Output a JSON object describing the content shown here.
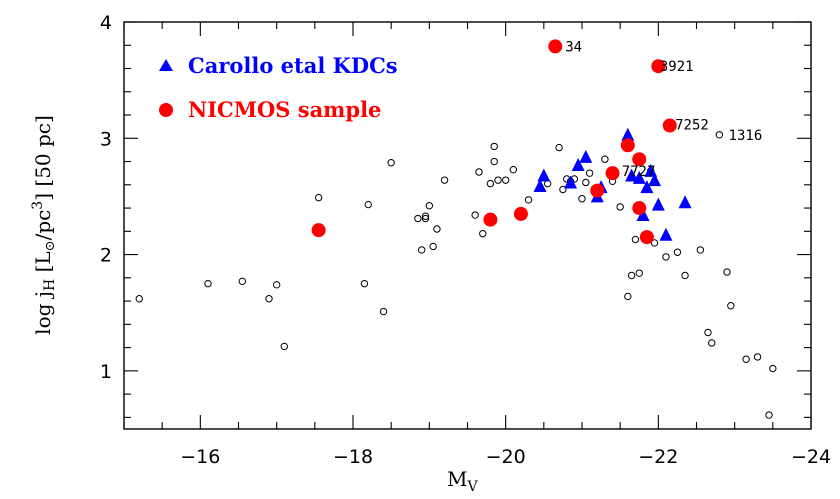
{
  "chart_data": {
    "type": "scatter",
    "xlabel_main": "M",
    "xlabel_sub": "V",
    "ylabel": "log j [L /pc ] [50 pc]",
    "ylabel_parts": {
      "pre": "log j",
      "sub_h": "H",
      "bracket_open": " [L",
      "sub_sun": "⊙",
      "mid": "/pc",
      "sup": "3",
      "post": "] [50 pc]"
    },
    "xlim": [
      -15,
      -24
    ],
    "ylim": [
      0.5,
      4
    ],
    "x_ticks": [
      -16,
      -18,
      -20,
      -22,
      -24
    ],
    "x_tick_labels": [
      "−16",
      "−18",
      "−20",
      "−22",
      "−24"
    ],
    "y_ticks": [
      1,
      2,
      3,
      4
    ],
    "y_tick_labels": [
      "1",
      "2",
      "3",
      "4"
    ],
    "grid": false,
    "legend_position": "top-left",
    "series": [
      {
        "name": "",
        "marker": "open-circle",
        "color": "#000000",
        "points": [
          [
            -15.2,
            1.62
          ],
          [
            -16.1,
            1.75
          ],
          [
            -16.55,
            1.77
          ],
          [
            -16.9,
            1.62
          ],
          [
            -17.0,
            1.74
          ],
          [
            -17.1,
            1.21
          ],
          [
            -17.55,
            2.49
          ],
          [
            -18.15,
            1.75
          ],
          [
            -18.2,
            2.43
          ],
          [
            -18.4,
            1.51
          ],
          [
            -18.5,
            2.79
          ],
          [
            -18.85,
            2.31
          ],
          [
            -18.9,
            2.04
          ],
          [
            -18.95,
            2.33
          ],
          [
            -18.95,
            2.31
          ],
          [
            -19.0,
            2.42
          ],
          [
            -19.05,
            2.07
          ],
          [
            -19.1,
            2.22
          ],
          [
            -19.2,
            2.64
          ],
          [
            -19.6,
            2.34
          ],
          [
            -19.65,
            2.71
          ],
          [
            -19.7,
            2.18
          ],
          [
            -19.8,
            2.61
          ],
          [
            -19.85,
            2.8
          ],
          [
            -19.85,
            2.93
          ],
          [
            -19.9,
            2.64
          ],
          [
            -20.0,
            2.64
          ],
          [
            -20.1,
            2.73
          ],
          [
            -20.3,
            2.47
          ],
          [
            -20.55,
            2.61
          ],
          [
            -20.7,
            2.92
          ],
          [
            -20.75,
            2.56
          ],
          [
            -20.8,
            2.65
          ],
          [
            -20.85,
            2.63
          ],
          [
            -20.9,
            2.65
          ],
          [
            -21.0,
            2.48
          ],
          [
            -21.05,
            2.62
          ],
          [
            -21.1,
            2.7
          ],
          [
            -21.2,
            2.5
          ],
          [
            -21.3,
            2.82
          ],
          [
            -21.4,
            2.63
          ],
          [
            -21.5,
            2.41
          ],
          [
            -21.6,
            1.64
          ],
          [
            -21.65,
            1.82
          ],
          [
            -21.7,
            2.13
          ],
          [
            -21.75,
            1.84
          ],
          [
            -21.9,
            2.72
          ],
          [
            -21.95,
            2.1
          ],
          [
            -22.1,
            1.98
          ],
          [
            -22.25,
            2.02
          ],
          [
            -22.35,
            1.82
          ],
          [
            -22.55,
            2.04
          ],
          [
            -22.65,
            1.33
          ],
          [
            -22.7,
            1.24
          ],
          [
            -22.8,
            3.03
          ],
          [
            -22.9,
            1.85
          ],
          [
            -22.95,
            1.56
          ],
          [
            -23.15,
            1.1
          ],
          [
            -23.3,
            1.12
          ],
          [
            -23.45,
            0.62
          ],
          [
            -23.5,
            1.02
          ]
        ]
      },
      {
        "name": "Carollo etal KDCs",
        "marker": "filled-triangle",
        "color": "#0000ff",
        "points": [
          [
            -20.45,
            2.59
          ],
          [
            -20.5,
            2.68
          ],
          [
            -20.85,
            2.62
          ],
          [
            -20.95,
            2.77
          ],
          [
            -21.05,
            2.84
          ],
          [
            -21.2,
            2.5
          ],
          [
            -21.25,
            2.58
          ],
          [
            -21.6,
            3.03
          ],
          [
            -21.65,
            2.68
          ],
          [
            -21.75,
            2.66
          ],
          [
            -21.8,
            2.34
          ],
          [
            -21.85,
            2.58
          ],
          [
            -21.9,
            2.72
          ],
          [
            -21.95,
            2.64
          ],
          [
            -22.0,
            2.43
          ],
          [
            -22.1,
            2.17
          ],
          [
            -22.35,
            2.45
          ]
        ]
      },
      {
        "name": "NICMOS sample",
        "marker": "filled-circle",
        "color": "#ff0000",
        "points": [
          [
            -17.55,
            2.21
          ],
          [
            -19.8,
            2.3
          ],
          [
            -20.2,
            2.35
          ],
          [
            -20.65,
            3.79
          ],
          [
            -21.2,
            2.55
          ],
          [
            -21.4,
            2.7
          ],
          [
            -21.6,
            2.94
          ],
          [
            -21.75,
            2.82
          ],
          [
            -21.75,
            2.4
          ],
          [
            -21.85,
            2.15
          ],
          [
            -22.0,
            3.62
          ],
          [
            -22.15,
            3.11
          ]
        ]
      }
    ],
    "annotations": [
      {
        "text": "34",
        "x": -20.78,
        "y": 3.79
      },
      {
        "text": "3921",
        "x": -22.02,
        "y": 3.62
      },
      {
        "text": "7252",
        "x": -22.22,
        "y": 3.12
      },
      {
        "text": "1316",
        "x": -22.92,
        "y": 3.03
      },
      {
        "text": "7727",
        "x": -21.52,
        "y": 2.72
      }
    ]
  }
}
